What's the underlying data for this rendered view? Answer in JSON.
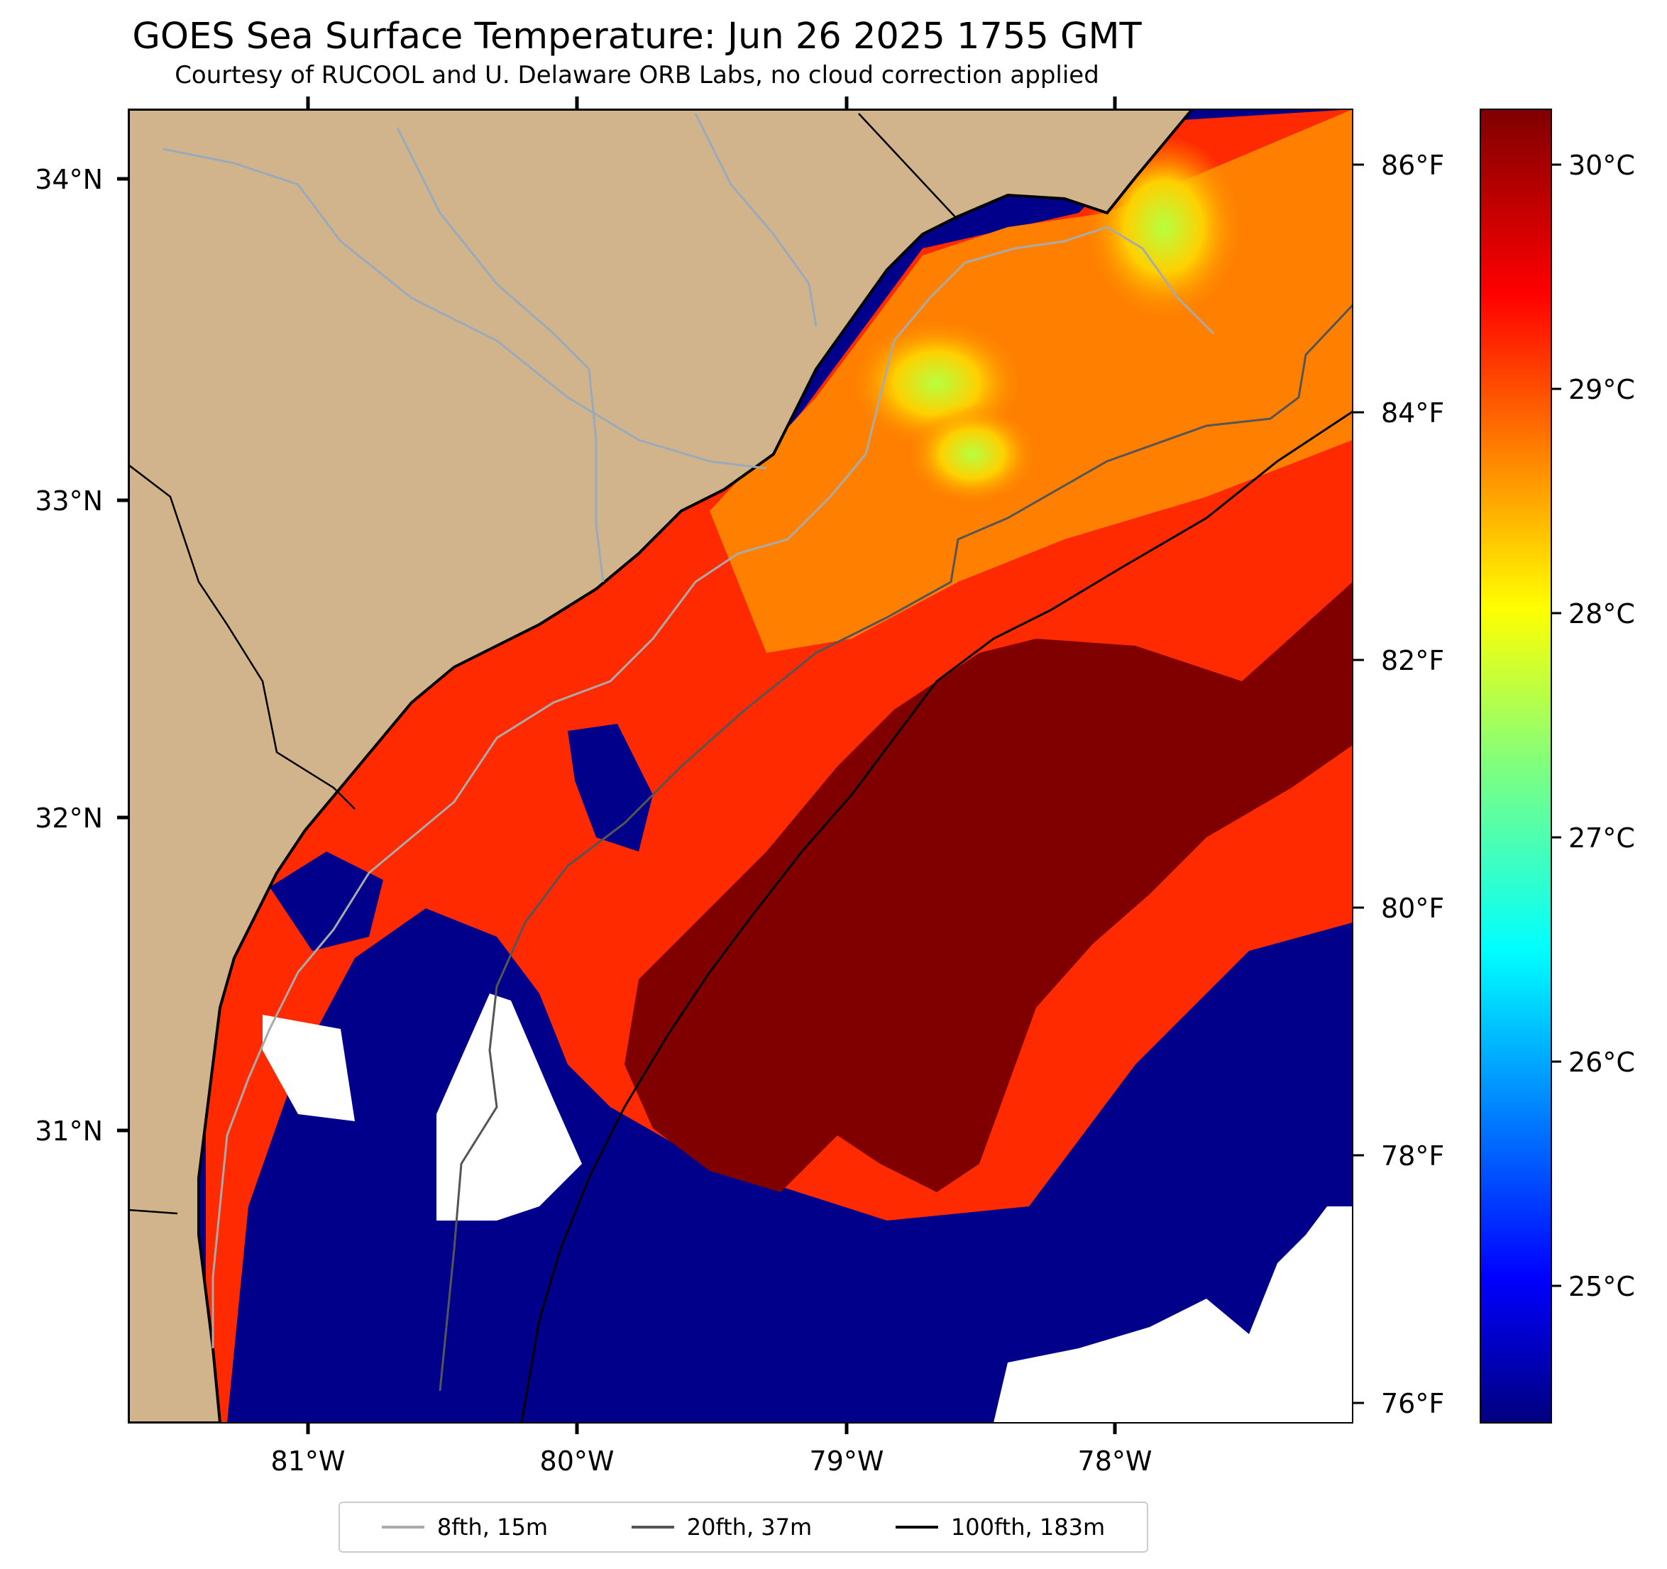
{
  "title": "GOES Sea Surface Temperature: Jun 26 2025 1755 GMT",
  "subtitle": "Courtesy of RUCOOL and U. Delaware ORB Labs, no cloud correction applied",
  "map": {
    "lon_range": [
      -81.67,
      -77.12
    ],
    "lat_range": [
      30.1,
      34.22
    ],
    "lat_ticks": [
      "34°N",
      "33°N",
      "32°N",
      "31°N"
    ],
    "lon_ticks": [
      "81°W",
      "80°W",
      "79°W",
      "78°W"
    ],
    "fahrenheit_ticks": [
      "86°F",
      "84°F",
      "82°F",
      "80°F",
      "78°F",
      "76°F"
    ]
  },
  "colorbar": {
    "colormap": "jet",
    "range_c": [
      24.4,
      30.2
    ],
    "ticks": [
      "30°C",
      "29°C",
      "28°C",
      "27°C",
      "26°C",
      "25°C"
    ]
  },
  "legend": [
    {
      "label": "8fth, 15m",
      "color": "#aaaaaa"
    },
    {
      "label": "20fth, 37m",
      "color": "#555555"
    },
    {
      "label": "100fth, 183m",
      "color": "#000000"
    }
  ],
  "colors": {
    "land": "#d2b48c",
    "warm": "#800000",
    "cold": "#00008b",
    "river": "#99aabb"
  }
}
